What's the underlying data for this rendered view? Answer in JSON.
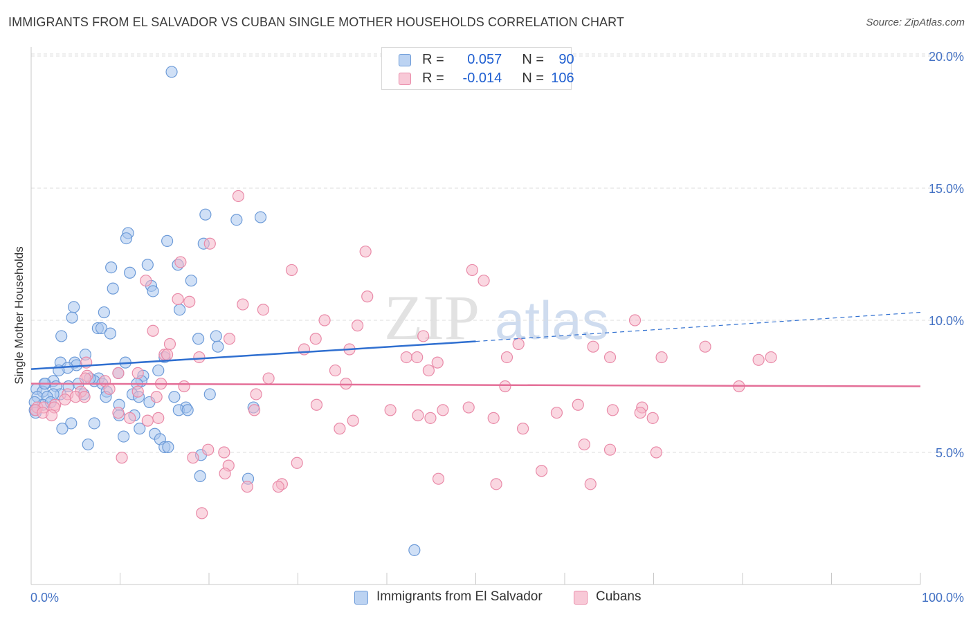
{
  "title": "IMMIGRANTS FROM EL SALVADOR VS CUBAN SINGLE MOTHER HOUSEHOLDS CORRELATION CHART",
  "source": "Source: ZipAtlas.com",
  "watermark": {
    "part1": "ZIP",
    "part2": "atlas"
  },
  "colors": {
    "blue_fill": "#a9c6ee",
    "blue_stroke": "#6d9bd8",
    "blue_line": "#2f6fd0",
    "pink_fill": "#f5b7c9",
    "pink_stroke": "#e98aa8",
    "pink_line": "#e46f98",
    "grid": "#dddddd",
    "tick_text": "#4472c4"
  },
  "legend_top": {
    "rows": [
      {
        "r_label": "R =",
        "r_value": "0.057",
        "n_label": "N =",
        "n_value": "90"
      },
      {
        "r_label": "R =",
        "r_value": "-0.014",
        "n_label": "N =",
        "n_value": "106"
      }
    ]
  },
  "legend_bottom": {
    "items": [
      "Immigrants from El Salvador",
      "Cubans"
    ]
  },
  "chart_data": {
    "type": "scatter",
    "title": "IMMIGRANTS FROM EL SALVADOR VS CUBAN SINGLE MOTHER HOUSEHOLDS CORRELATION CHART",
    "xlabel": "",
    "ylabel": "Single Mother Households",
    "xlim": [
      0,
      100
    ],
    "ylim": [
      0,
      20.5
    ],
    "x_tick_labels": [
      "0.0%",
      "100.0%"
    ],
    "y_ticks": [
      5,
      10,
      15,
      20
    ],
    "y_tick_labels": [
      "5.0%",
      "10.0%",
      "15.0%",
      "20.0%"
    ],
    "grid": "horizontal dashed",
    "legend": "top-center",
    "series": [
      {
        "name": "Immigrants from El Salvador",
        "color": "#6d9bd8",
        "trend": {
          "x0": 0,
          "y0": 8.15,
          "x1": 50,
          "y1": 9.2,
          "dashed_to_x": 100,
          "dashed_to_y": 10.3
        },
        "points": [
          [
            15.8,
            19.4
          ],
          [
            19.6,
            14.0
          ],
          [
            23.1,
            13.8
          ],
          [
            25.8,
            13.9
          ],
          [
            10.9,
            13.3
          ],
          [
            10.7,
            13.1
          ],
          [
            15.3,
            13.0
          ],
          [
            19.4,
            12.9
          ],
          [
            13.1,
            12.1
          ],
          [
            16.5,
            12.1
          ],
          [
            9.0,
            12.0
          ],
          [
            11.1,
            11.8
          ],
          [
            18.0,
            11.5
          ],
          [
            13.5,
            11.3
          ],
          [
            9.2,
            11.2
          ],
          [
            13.7,
            11.1
          ],
          [
            4.8,
            10.5
          ],
          [
            16.7,
            10.4
          ],
          [
            8.2,
            10.3
          ],
          [
            4.6,
            10.1
          ],
          [
            7.5,
            9.7
          ],
          [
            7.9,
            9.7
          ],
          [
            8.9,
            9.5
          ],
          [
            3.4,
            9.4
          ],
          [
            20.8,
            9.4
          ],
          [
            18.8,
            9.3
          ],
          [
            21.0,
            9.0
          ],
          [
            6.1,
            8.7
          ],
          [
            4.9,
            8.4
          ],
          [
            3.3,
            8.4
          ],
          [
            10.6,
            8.4
          ],
          [
            5.1,
            8.3
          ],
          [
            4.1,
            8.2
          ],
          [
            15.0,
            8.6
          ],
          [
            14.3,
            8.1
          ],
          [
            9.8,
            8.0
          ],
          [
            3.1,
            8.1
          ],
          [
            7.6,
            7.8
          ],
          [
            12.6,
            7.9
          ],
          [
            1.6,
            7.6
          ],
          [
            2.5,
            7.7
          ],
          [
            12.4,
            7.7
          ],
          [
            7.1,
            7.7
          ],
          [
            5.3,
            7.6
          ],
          [
            8.0,
            7.6
          ],
          [
            2.8,
            7.5
          ],
          [
            4.2,
            7.5
          ],
          [
            0.6,
            7.4
          ],
          [
            1.3,
            7.3
          ],
          [
            8.5,
            7.3
          ],
          [
            11.4,
            7.2
          ],
          [
            3.3,
            7.2
          ],
          [
            2.5,
            7.2
          ],
          [
            5.9,
            7.2
          ],
          [
            8.4,
            7.1
          ],
          [
            12.1,
            7.1
          ],
          [
            16.1,
            7.1
          ],
          [
            20.1,
            7.2
          ],
          [
            0.7,
            7.1
          ],
          [
            1.8,
            7.1
          ],
          [
            9.9,
            6.8
          ],
          [
            13.3,
            6.9
          ],
          [
            1.3,
            6.8
          ],
          [
            0.4,
            6.9
          ],
          [
            17.4,
            6.7
          ],
          [
            25.0,
            6.7
          ],
          [
            16.6,
            6.6
          ],
          [
            17.6,
            6.6
          ],
          [
            9.9,
            6.4
          ],
          [
            11.6,
            6.4
          ],
          [
            0.4,
            6.6
          ],
          [
            0.5,
            6.5
          ],
          [
            7.1,
            6.1
          ],
          [
            4.5,
            6.1
          ],
          [
            3.5,
            5.9
          ],
          [
            12.2,
            5.9
          ],
          [
            13.9,
            5.7
          ],
          [
            10.4,
            5.6
          ],
          [
            14.5,
            5.5
          ],
          [
            6.4,
            5.3
          ],
          [
            15.0,
            5.2
          ],
          [
            15.4,
            5.2
          ],
          [
            19.1,
            4.9
          ],
          [
            19.0,
            4.1
          ],
          [
            24.4,
            4.0
          ],
          [
            43.1,
            1.3
          ],
          [
            1.5,
            7.6
          ],
          [
            6.6,
            7.8
          ],
          [
            11.9,
            7.6
          ],
          [
            2.2,
            6.9
          ]
        ]
      },
      {
        "name": "Cubans",
        "color": "#e98aa8",
        "trend": {
          "x0": 0,
          "y0": 7.6,
          "x1": 100,
          "y1": 7.5
        },
        "points": [
          [
            23.3,
            14.7
          ],
          [
            20.1,
            12.9
          ],
          [
            37.6,
            12.6
          ],
          [
            16.8,
            12.2
          ],
          [
            29.3,
            11.9
          ],
          [
            49.6,
            11.9
          ],
          [
            50.9,
            11.5
          ],
          [
            12.9,
            11.5
          ],
          [
            37.8,
            10.9
          ],
          [
            17.8,
            10.7
          ],
          [
            16.5,
            10.8
          ],
          [
            23.8,
            10.6
          ],
          [
            26.1,
            10.4
          ],
          [
            33.0,
            10.0
          ],
          [
            36.7,
            9.8
          ],
          [
            67.9,
            10.0
          ],
          [
            13.7,
            9.6
          ],
          [
            44.1,
            9.4
          ],
          [
            22.3,
            9.3
          ],
          [
            32.0,
            9.3
          ],
          [
            54.8,
            9.1
          ],
          [
            15.6,
            9.1
          ],
          [
            63.2,
            9.0
          ],
          [
            75.8,
            9.0
          ],
          [
            30.7,
            8.9
          ],
          [
            35.8,
            8.9
          ],
          [
            15.0,
            8.7
          ],
          [
            15.3,
            8.7
          ],
          [
            18.9,
            8.6
          ],
          [
            42.2,
            8.6
          ],
          [
            43.4,
            8.6
          ],
          [
            45.7,
            8.4
          ],
          [
            53.5,
            8.6
          ],
          [
            65.1,
            8.6
          ],
          [
            70.9,
            8.6
          ],
          [
            81.8,
            8.5
          ],
          [
            83.2,
            8.6
          ],
          [
            6.2,
            8.4
          ],
          [
            34.2,
            8.1
          ],
          [
            44.7,
            8.1
          ],
          [
            9.8,
            8.0
          ],
          [
            12.0,
            8.0
          ],
          [
            6.3,
            7.9
          ],
          [
            26.7,
            7.8
          ],
          [
            6.1,
            7.8
          ],
          [
            8.3,
            7.7
          ],
          [
            14.6,
            7.6
          ],
          [
            17.2,
            7.5
          ],
          [
            35.4,
            7.6
          ],
          [
            53.3,
            7.5
          ],
          [
            79.6,
            7.5
          ],
          [
            8.8,
            7.4
          ],
          [
            12.0,
            7.3
          ],
          [
            5.6,
            7.3
          ],
          [
            4.1,
            7.2
          ],
          [
            14.1,
            7.1
          ],
          [
            25.3,
            7.2
          ],
          [
            5.0,
            7.1
          ],
          [
            6.0,
            7.1
          ],
          [
            3.8,
            7.0
          ],
          [
            2.7,
            6.8
          ],
          [
            0.7,
            6.7
          ],
          [
            1.4,
            6.7
          ],
          [
            2.6,
            6.7
          ],
          [
            32.1,
            6.8
          ],
          [
            49.2,
            6.7
          ],
          [
            61.5,
            6.8
          ],
          [
            68.7,
            6.7
          ],
          [
            25.1,
            6.6
          ],
          [
            40.4,
            6.6
          ],
          [
            46.3,
            6.6
          ],
          [
            65.4,
            6.6
          ],
          [
            0.5,
            6.6
          ],
          [
            1.3,
            6.5
          ],
          [
            2.3,
            6.4
          ],
          [
            9.8,
            6.5
          ],
          [
            11.1,
            6.3
          ],
          [
            59.1,
            6.5
          ],
          [
            68.5,
            6.5
          ],
          [
            43.5,
            6.4
          ],
          [
            44.9,
            6.3
          ],
          [
            52.0,
            6.3
          ],
          [
            69.9,
            6.3
          ],
          [
            36.2,
            6.2
          ],
          [
            34.7,
            5.9
          ],
          [
            13.1,
            6.2
          ],
          [
            55.3,
            5.9
          ],
          [
            62.2,
            5.3
          ],
          [
            65.1,
            5.1
          ],
          [
            70.3,
            5.0
          ],
          [
            19.9,
            5.1
          ],
          [
            21.7,
            5.0
          ],
          [
            10.2,
            4.8
          ],
          [
            18.2,
            4.8
          ],
          [
            29.9,
            4.6
          ],
          [
            22.2,
            4.5
          ],
          [
            21.8,
            4.2
          ],
          [
            57.4,
            4.3
          ],
          [
            45.8,
            4.0
          ],
          [
            52.3,
            3.8
          ],
          [
            62.9,
            3.8
          ],
          [
            28.2,
            3.8
          ],
          [
            24.3,
            3.7
          ],
          [
            27.8,
            3.7
          ],
          [
            19.2,
            2.7
          ],
          [
            14.3,
            6.3
          ]
        ]
      }
    ]
  }
}
